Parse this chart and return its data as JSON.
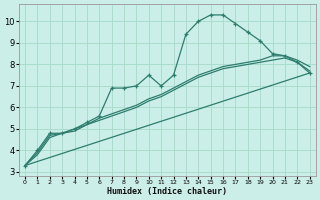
{
  "xlabel": "Humidex (Indice chaleur)",
  "bg_color": "#cceee8",
  "line_color": "#2d7d6e",
  "grid_color": "#aaddcc",
  "xlim": [
    -0.5,
    23.5
  ],
  "ylim": [
    2.8,
    10.8
  ],
  "yticks": [
    3,
    4,
    5,
    6,
    7,
    8,
    9,
    10
  ],
  "xticks": [
    0,
    1,
    2,
    3,
    4,
    5,
    6,
    7,
    8,
    9,
    10,
    11,
    12,
    13,
    14,
    15,
    16,
    17,
    18,
    19,
    20,
    21,
    22,
    23
  ],
  "line1_x": [
    0,
    1,
    2,
    3,
    4,
    5,
    6,
    7,
    8,
    9,
    10,
    11,
    12,
    13,
    14,
    15,
    16,
    17,
    18,
    19,
    20,
    21,
    22,
    23
  ],
  "line1_y": [
    3.3,
    4.0,
    4.8,
    4.8,
    5.0,
    5.3,
    5.6,
    6.9,
    6.9,
    7.0,
    7.5,
    7.0,
    7.5,
    9.4,
    10.0,
    10.3,
    10.3,
    9.9,
    9.5,
    9.1,
    8.5,
    8.4,
    8.1,
    7.6
  ],
  "line2_x": [
    0,
    23
  ],
  "line2_y": [
    3.3,
    7.6
  ],
  "line3_x": [
    0,
    1,
    2,
    3,
    4,
    5,
    6,
    7,
    8,
    9,
    10,
    11,
    12,
    13,
    14,
    15,
    16,
    17,
    18,
    19,
    20,
    21,
    22,
    23
  ],
  "line3_y": [
    3.3,
    3.9,
    4.7,
    4.8,
    4.9,
    5.2,
    5.5,
    5.7,
    5.9,
    6.1,
    6.4,
    6.6,
    6.9,
    7.2,
    7.5,
    7.7,
    7.9,
    8.0,
    8.1,
    8.2,
    8.4,
    8.4,
    8.2,
    7.9
  ],
  "line4_x": [
    0,
    1,
    2,
    3,
    4,
    5,
    6,
    7,
    8,
    9,
    10,
    11,
    12,
    13,
    14,
    15,
    16,
    17,
    18,
    19,
    20,
    21,
    22,
    23
  ],
  "line4_y": [
    3.3,
    3.8,
    4.6,
    4.8,
    5.0,
    5.2,
    5.4,
    5.6,
    5.8,
    6.0,
    6.3,
    6.5,
    6.8,
    7.1,
    7.4,
    7.6,
    7.8,
    7.9,
    8.0,
    8.1,
    8.2,
    8.3,
    8.1,
    7.7
  ]
}
